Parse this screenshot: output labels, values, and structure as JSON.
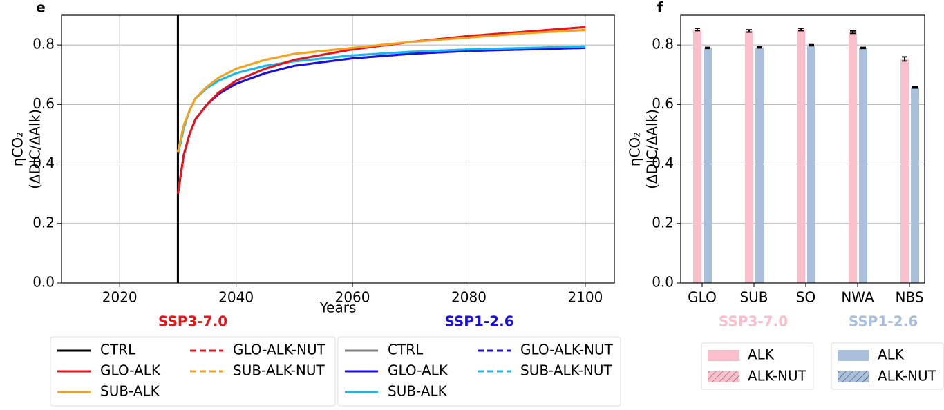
{
  "chart_data": [
    {
      "type": "line",
      "panel_label": "e",
      "xlabel": "Years",
      "ylabel": [
        "ηCO₂",
        "(ΔDIC/ΔAlk)"
      ],
      "xlim": [
        2010,
        2105
      ],
      "xticks": [
        2020,
        2040,
        2060,
        2080,
        2100
      ],
      "ylim": [
        0,
        0.9
      ],
      "yticks": [
        {
          "value": 0,
          "label": "0.0"
        },
        0.2,
        0.4,
        0.6,
        0.8
      ],
      "grid": true,
      "x": [
        2030,
        2031,
        2032,
        2033,
        2035,
        2037,
        2040,
        2045,
        2050,
        2060,
        2070,
        2080,
        2090,
        2100
      ],
      "groups": [
        {
          "title": "SSP3-7.0",
          "color": "#e8141c",
          "series": [
            {
              "name": "CTRL",
              "color": "#000000",
              "dashed": false,
              "x": [
                2030,
                2030
              ],
              "values": [
                0,
                0.9
              ]
            },
            {
              "name": "GLO-ALK",
              "color": "#e8141c",
              "dashed": false,
              "values": [
                0.3,
                0.43,
                0.5,
                0.55,
                0.6,
                0.64,
                0.68,
                0.72,
                0.75,
                0.785,
                0.81,
                0.83,
                0.845,
                0.86
              ]
            },
            {
              "name": "SUB-ALK",
              "color": "#f5a21d",
              "dashed": false,
              "values": [
                0.44,
                0.53,
                0.58,
                0.62,
                0.66,
                0.69,
                0.72,
                0.75,
                0.77,
                0.79,
                0.81,
                0.825,
                0.84,
                0.85
              ]
            },
            {
              "name": "GLO-ALK-NUT",
              "color": "#e8141c",
              "dashed": true,
              "values": [
                0.3,
                0.43,
                0.5,
                0.55,
                0.6,
                0.64,
                0.68,
                0.72,
                0.75,
                0.785,
                0.81,
                0.83,
                0.845,
                0.86
              ]
            },
            {
              "name": "SUB-ALK-NUT",
              "color": "#f5a21d",
              "dashed": true,
              "values": [
                0.44,
                0.53,
                0.58,
                0.62,
                0.66,
                0.69,
                0.72,
                0.75,
                0.77,
                0.79,
                0.81,
                0.825,
                0.84,
                0.85
              ]
            }
          ]
        },
        {
          "title": "SSP1-2.6",
          "color": "#1a10e0",
          "series": [
            {
              "name": "CTRL",
              "color": "#808080",
              "dashed": false,
              "x": [
                2030,
                2030
              ],
              "values": [
                0,
                0.9
              ]
            },
            {
              "name": "GLO-ALK",
              "color": "#1a10e0",
              "dashed": false,
              "values": [
                0.3,
                0.43,
                0.5,
                0.55,
                0.6,
                0.635,
                0.67,
                0.705,
                0.73,
                0.755,
                0.77,
                0.78,
                0.785,
                0.79
              ]
            },
            {
              "name": "SUB-ALK",
              "color": "#1ab8f0",
              "dashed": false,
              "values": [
                0.43,
                0.52,
                0.58,
                0.62,
                0.655,
                0.68,
                0.705,
                0.73,
                0.745,
                0.765,
                0.777,
                0.785,
                0.79,
                0.795
              ]
            },
            {
              "name": "GLO-ALK-NUT",
              "color": "#1a10e0",
              "dashed": true,
              "values": [
                0.3,
                0.43,
                0.5,
                0.55,
                0.6,
                0.635,
                0.67,
                0.705,
                0.73,
                0.755,
                0.77,
                0.78,
                0.785,
                0.79
              ]
            },
            {
              "name": "SUB-ALK-NUT",
              "color": "#1ab8f0",
              "dashed": true,
              "values": [
                0.43,
                0.52,
                0.58,
                0.62,
                0.655,
                0.68,
                0.705,
                0.73,
                0.745,
                0.765,
                0.777,
                0.785,
                0.79,
                0.795
              ]
            }
          ]
        }
      ]
    },
    {
      "type": "bar",
      "panel_label": "f",
      "ylabel": [
        "ηCO₂",
        "(ΔDIC/ΔAlk)"
      ],
      "categories": [
        "GLO",
        "SUB",
        "SO",
        "NWA",
        "NBS"
      ],
      "ylim": [
        0,
        0.9
      ],
      "yticks": [
        {
          "value": 0,
          "label": "0.0"
        },
        0.2,
        0.4,
        0.6,
        0.8
      ],
      "grid": true,
      "groups": [
        {
          "title": "SSP3-7.0",
          "color": "#f9bfcb",
          "series": [
            {
              "name": "ALK",
              "color": "#f9bfcb",
              "hatched": false,
              "values": [
                0.852,
                0.847,
                0.852,
                0.843,
                0.753
              ],
              "errors": [
                0.004,
                0.004,
                0.004,
                0.004,
                0.007
              ]
            },
            {
              "name": "ALK-NUT",
              "color": "#f9bfcb",
              "hatched": true,
              "values": [
                null,
                null,
                null,
                null,
                null
              ]
            }
          ]
        },
        {
          "title": "SSP1-2.6",
          "color": "#a9bfdc",
          "series": [
            {
              "name": "ALK",
              "color": "#a9bfdc",
              "hatched": false,
              "values": [
                0.79,
                0.792,
                0.799,
                0.79,
                0.657
              ],
              "errors": [
                0.002,
                0.002,
                0.002,
                0.002,
                0.002
              ]
            },
            {
              "name": "ALK-NUT",
              "color": "#a9bfdc",
              "hatched": true,
              "values": [
                null,
                null,
                null,
                null,
                null
              ]
            }
          ]
        }
      ]
    }
  ]
}
